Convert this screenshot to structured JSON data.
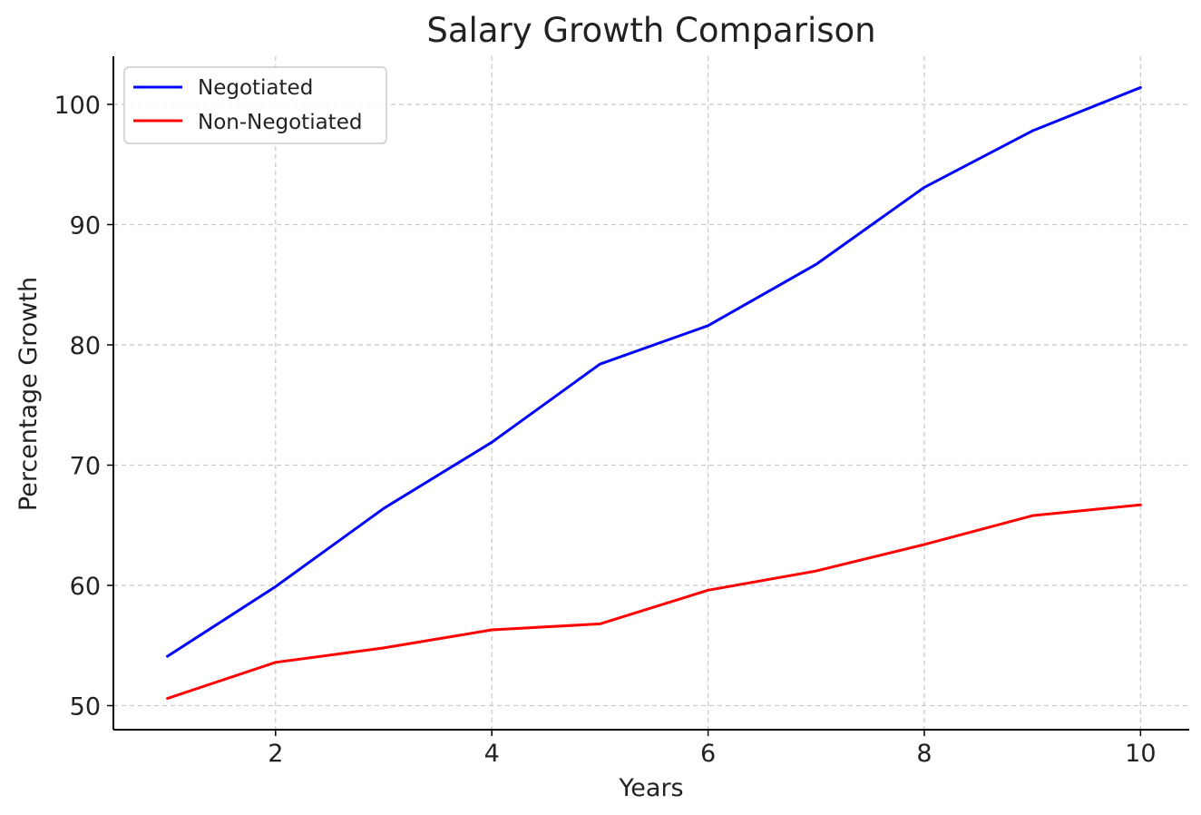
{
  "chart_data": {
    "type": "line",
    "title": "Salary Growth Comparison",
    "xlabel": "Years",
    "ylabel": "Percentage Growth",
    "x": [
      1,
      2,
      3,
      4,
      5,
      6,
      7,
      8,
      9,
      10
    ],
    "xlim": [
      0.5,
      10.45
    ],
    "ylim": [
      48,
      104
    ],
    "xticks": [
      2,
      4,
      6,
      8,
      10
    ],
    "yticks": [
      50,
      60,
      70,
      80,
      90,
      100
    ],
    "grid": true,
    "legend_position": "top-left",
    "series": [
      {
        "name": "Negotiated",
        "color": "#0000ff",
        "values": [
          54.1,
          59.9,
          66.4,
          71.9,
          78.4,
          81.6,
          86.7,
          93.1,
          97.8,
          101.4
        ]
      },
      {
        "name": "Non-Negotiated",
        "color": "#ff0000",
        "values": [
          50.6,
          53.6,
          54.8,
          56.3,
          56.8,
          59.6,
          61.2,
          63.4,
          65.8,
          66.7
        ]
      }
    ]
  }
}
